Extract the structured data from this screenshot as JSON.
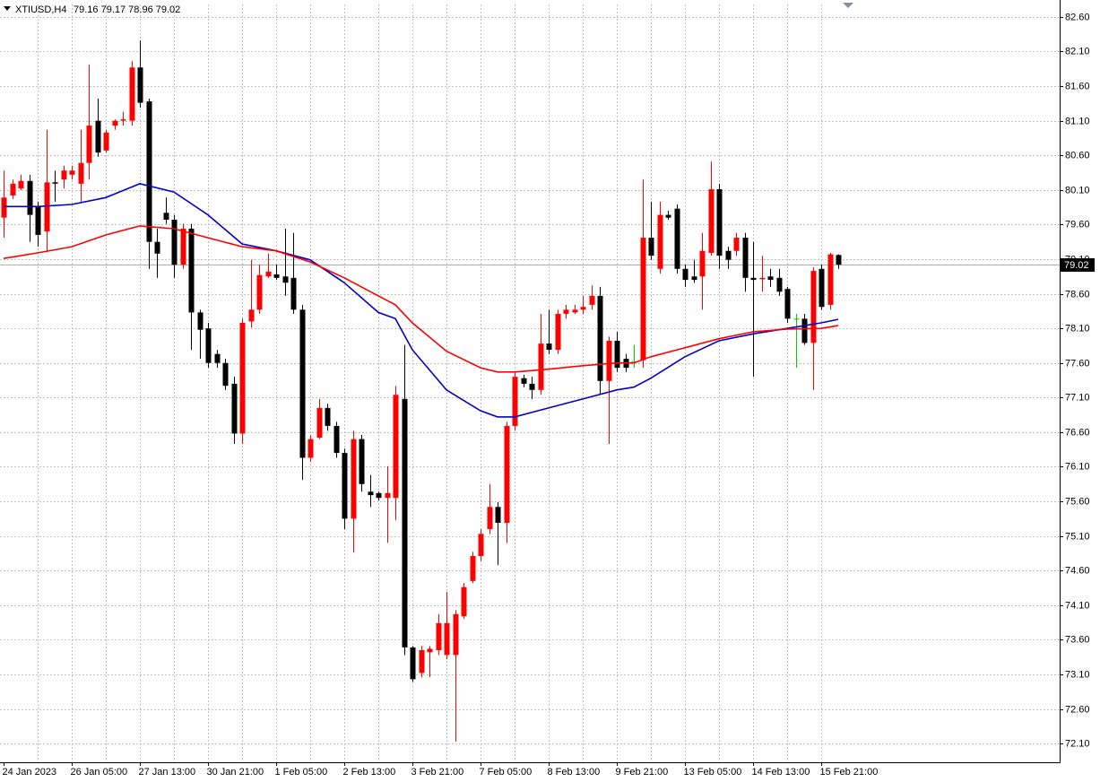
{
  "chart_data": {
    "type": "candlestick",
    "symbol": "XTIUSD,H4",
    "ohlc_text": "79.16 79.17 78.96 79.02",
    "categories": [
      "24 Jan 2023",
      null,
      null,
      null,
      null,
      null,
      null,
      null,
      "26 Jan 05:00",
      null,
      null,
      null,
      null,
      null,
      null,
      null,
      "27 Jan 13:00",
      null,
      null,
      null,
      null,
      null,
      null,
      null,
      "30 Jan 21:00",
      null,
      null,
      null,
      null,
      null,
      null,
      null,
      "1 Feb 05:00",
      null,
      null,
      null,
      null,
      null,
      null,
      null,
      "2 Feb 13:00",
      null,
      null,
      null,
      null,
      null,
      null,
      null,
      "3 Feb 21:00",
      null,
      null,
      null,
      null,
      null,
      null,
      null,
      "7 Feb 05:00",
      null,
      null,
      null,
      null,
      null,
      null,
      null,
      "8 Feb 13:00",
      null,
      null,
      null,
      null,
      null,
      null,
      null,
      "9 Feb 21:00",
      null,
      null,
      null,
      null,
      null,
      null,
      null,
      "13 Feb 05:00",
      null,
      null,
      null,
      null,
      null,
      null,
      null,
      "14 Feb 13:00",
      null,
      null,
      null,
      null,
      null,
      null,
      null,
      "15 Feb 21:00",
      null,
      null
    ],
    "open": [
      79.7,
      80.02,
      80.12,
      80.23,
      79.86,
      79.5,
      80.21,
      80.25,
      80.32,
      80.19,
      80.49,
      81.1,
      80.67,
      81.03,
      81.1,
      81.1,
      81.87,
      81.38,
      79.35,
      79.77,
      79.67,
      79.02,
      79.54,
      78.33,
      78.1,
      77.73,
      77.6,
      77.3,
      76.58,
      78.2,
      78.37,
      78.85,
      78.88,
      78.85,
      78.83,
      78.37,
      76.23,
      76.52,
      76.95,
      76.69,
      76.3,
      75.35,
      76.5,
      75.74,
      75.72,
      75.65,
      75.65,
      77.08,
      73.49,
      73.12,
      73.42,
      73.45,
      73.38,
      73.38,
      73.94,
      74.45,
      74.81,
      75.2,
      75.52,
      75.29,
      76.69,
      77.38,
      77.3,
      77.21,
      77.88,
      77.79,
      78.31,
      78.33,
      78.37,
      78.44,
      78.57,
      77.34,
      77.92,
      77.66,
      77.62,
      77.64,
      79.41,
      78.96,
      79.74,
      79.83,
      78.96,
      78.85,
      78.85,
      79.19,
      80.11,
      79.22,
      79.22,
      79.41,
      78.83,
      78.81,
      78.85,
      78.83,
      78.67,
      78.24,
      78.24,
      77.89,
      78.96,
      78.44,
      79.16
    ],
    "high": [
      80.38,
      80.25,
      80.32,
      80.32,
      79.93,
      80.97,
      80.38,
      80.45,
      80.45,
      80.97,
      81.91,
      81.42,
      80.97,
      81.12,
      81.23,
      81.96,
      82.26,
      81.42,
      79.54,
      79.99,
      79.74,
      79.61,
      79.61,
      78.37,
      78.18,
      77.79,
      77.66,
      77.4,
      78.24,
      79.09,
      79.02,
      79.18,
      79.02,
      79.54,
      79.48,
      78.44,
      76.56,
      77.08,
      77.01,
      76.75,
      76.36,
      76.62,
      76.56,
      75.98,
      75.74,
      76.11,
      77.27,
      77.86,
      73.51,
      73.51,
      73.51,
      73.97,
      74.29,
      74.03,
      74.42,
      74.87,
      75.2,
      75.85,
      75.59,
      76.75,
      77.47,
      77.43,
      77.4,
      78.31,
      78.37,
      78.37,
      78.44,
      78.44,
      78.57,
      78.72,
      78.7,
      77.98,
      78.05,
      77.73,
      77.86,
      80.25,
      79.93,
      79.93,
      79.8,
      79.89,
      79.02,
      79.09,
      79.48,
      80.51,
      80.19,
      79.28,
      79.48,
      79.48,
      79.35,
      79.15,
      78.96,
      78.96,
      78.7,
      78.31,
      78.31,
      78.98,
      79.02,
      79.19,
      79.17
    ],
    "low": [
      79.41,
      79.97,
      80.1,
      79.35,
      79.28,
      79.22,
      79.93,
      80.12,
      80.25,
      79.93,
      80.25,
      80.58,
      80.64,
      80.97,
      81.03,
      81.03,
      81.29,
      78.96,
      78.83,
      79.61,
      78.83,
      78.96,
      77.79,
      77.66,
      77.53,
      77.53,
      77.21,
      76.43,
      76.43,
      78.11,
      78.31,
      78.83,
      78.8,
      78.57,
      78.31,
      75.91,
      76.17,
      76.5,
      76.62,
      76.23,
      75.2,
      74.86,
      75.74,
      75.52,
      75.61,
      75.0,
      75.33,
      73.38,
      72.99,
      73.06,
      73.06,
      73.38,
      73.32,
      72.13,
      73.9,
      74.42,
      74.74,
      75.13,
      74.68,
      75.0,
      76.62,
      77.25,
      77.08,
      77.14,
      77.73,
      77.73,
      78.24,
      78.31,
      78.31,
      78.37,
      77.14,
      76.43,
      77.47,
      77.47,
      77.53,
      77.53,
      79.09,
      78.89,
      79.67,
      78.89,
      78.7,
      78.76,
      78.37,
      79.15,
      78.96,
      78.96,
      79.15,
      78.63,
      77.4,
      78.63,
      78.7,
      78.57,
      78.18,
      77.53,
      77.86,
      77.21,
      78.37,
      78.37,
      78.96
    ],
    "close": [
      79.99,
      80.19,
      80.23,
      79.74,
      79.45,
      80.21,
      80.19,
      80.38,
      80.38,
      80.49,
      81.03,
      80.64,
      80.93,
      81.1,
      81.12,
      81.87,
      81.36,
      79.35,
      79.18,
      79.67,
      79.02,
      79.54,
      78.33,
      78.08,
      77.6,
      77.6,
      77.27,
      76.58,
      78.18,
      78.37,
      78.87,
      78.92,
      78.83,
      78.76,
      78.37,
      76.23,
      76.5,
      76.95,
      76.69,
      76.3,
      75.35,
      76.5,
      75.85,
      75.69,
      75.65,
      75.72,
      77.14,
      73.49,
      73.03,
      73.45,
      73.47,
      73.84,
      73.84,
      73.97,
      74.36,
      74.81,
      75.13,
      75.52,
      75.29,
      76.69,
      77.4,
      77.3,
      77.21,
      77.88,
      77.79,
      78.31,
      78.37,
      78.37,
      78.41,
      78.57,
      77.34,
      77.92,
      77.53,
      77.53,
      77.62,
      79.41,
      79.15,
      79.74,
      79.7,
      78.96,
      78.8,
      78.8,
      79.22,
      80.11,
      79.15,
      79.09,
      79.41,
      78.83,
      78.8,
      78.83,
      78.8,
      78.63,
      78.24,
      78.24,
      77.89,
      78.93,
      78.41,
      79.17,
      79.02
    ],
    "colors": {
      "up": "#ff0000",
      "down": "#000000",
      "doji": "#00d000"
    },
    "lines": [
      {
        "color": "#0000c8",
        "x": [
          0,
          4,
          8,
          12,
          16,
          20,
          24,
          28,
          32,
          36,
          40,
          44,
          46,
          48,
          52,
          56,
          58,
          60,
          64,
          68,
          72,
          74,
          76,
          80,
          84,
          88,
          92,
          96,
          98
        ],
        "values": [
          79.86,
          79.86,
          79.89,
          79.99,
          80.19,
          80.07,
          79.74,
          79.32,
          79.22,
          79.09,
          78.76,
          78.33,
          78.24,
          77.79,
          77.21,
          76.91,
          76.82,
          76.82,
          76.95,
          77.08,
          77.21,
          77.25,
          77.38,
          77.69,
          77.92,
          78.02,
          78.1,
          78.18,
          78.23
        ]
      },
      {
        "color": "#ff0000",
        "x": [
          0,
          4,
          8,
          12,
          16,
          20,
          24,
          28,
          32,
          36,
          40,
          44,
          46,
          48,
          52,
          56,
          58,
          60,
          64,
          68,
          72,
          74,
          76,
          80,
          84,
          88,
          92,
          96,
          98
        ],
        "values": [
          79.11,
          79.19,
          79.28,
          79.45,
          79.58,
          79.54,
          79.41,
          79.28,
          79.22,
          79.06,
          78.83,
          78.57,
          78.44,
          78.18,
          77.77,
          77.53,
          77.47,
          77.47,
          77.51,
          77.56,
          77.6,
          77.6,
          77.69,
          77.82,
          77.95,
          78.05,
          78.09,
          78.1,
          78.14
        ]
      }
    ],
    "last_price": 79.02,
    "ylim": [
      71.83,
      82.78
    ],
    "yticks": [
      {
        "value": 82.6,
        "label": "82.60"
      },
      {
        "value": 82.1,
        "label": "82.10"
      },
      {
        "value": 81.6,
        "label": "81.60"
      },
      {
        "value": 81.1,
        "label": "81.10"
      },
      {
        "value": 80.6,
        "label": "80.60"
      },
      {
        "value": 80.1,
        "label": "80.10"
      },
      {
        "value": 79.6,
        "label": "79.60"
      },
      {
        "value": 79.1,
        "label": "79.10"
      },
      {
        "value": 78.6,
        "label": "78.60"
      },
      {
        "value": 78.1,
        "label": "78.10"
      },
      {
        "value": 77.6,
        "label": "77.60"
      },
      {
        "value": 77.1,
        "label": "77.10"
      },
      {
        "value": 76.6,
        "label": "76.60"
      },
      {
        "value": 76.1,
        "label": "76.10"
      },
      {
        "value": 75.6,
        "label": "75.60"
      },
      {
        "value": 75.1,
        "label": "75.10"
      },
      {
        "value": 74.6,
        "label": "74.60"
      },
      {
        "value": 74.1,
        "label": "74.10"
      },
      {
        "value": 73.6,
        "label": "73.60"
      },
      {
        "value": 73.1,
        "label": "73.10"
      },
      {
        "value": 72.6,
        "label": "72.60"
      },
      {
        "value": 72.1,
        "label": "72.10"
      }
    ],
    "grid": true
  }
}
